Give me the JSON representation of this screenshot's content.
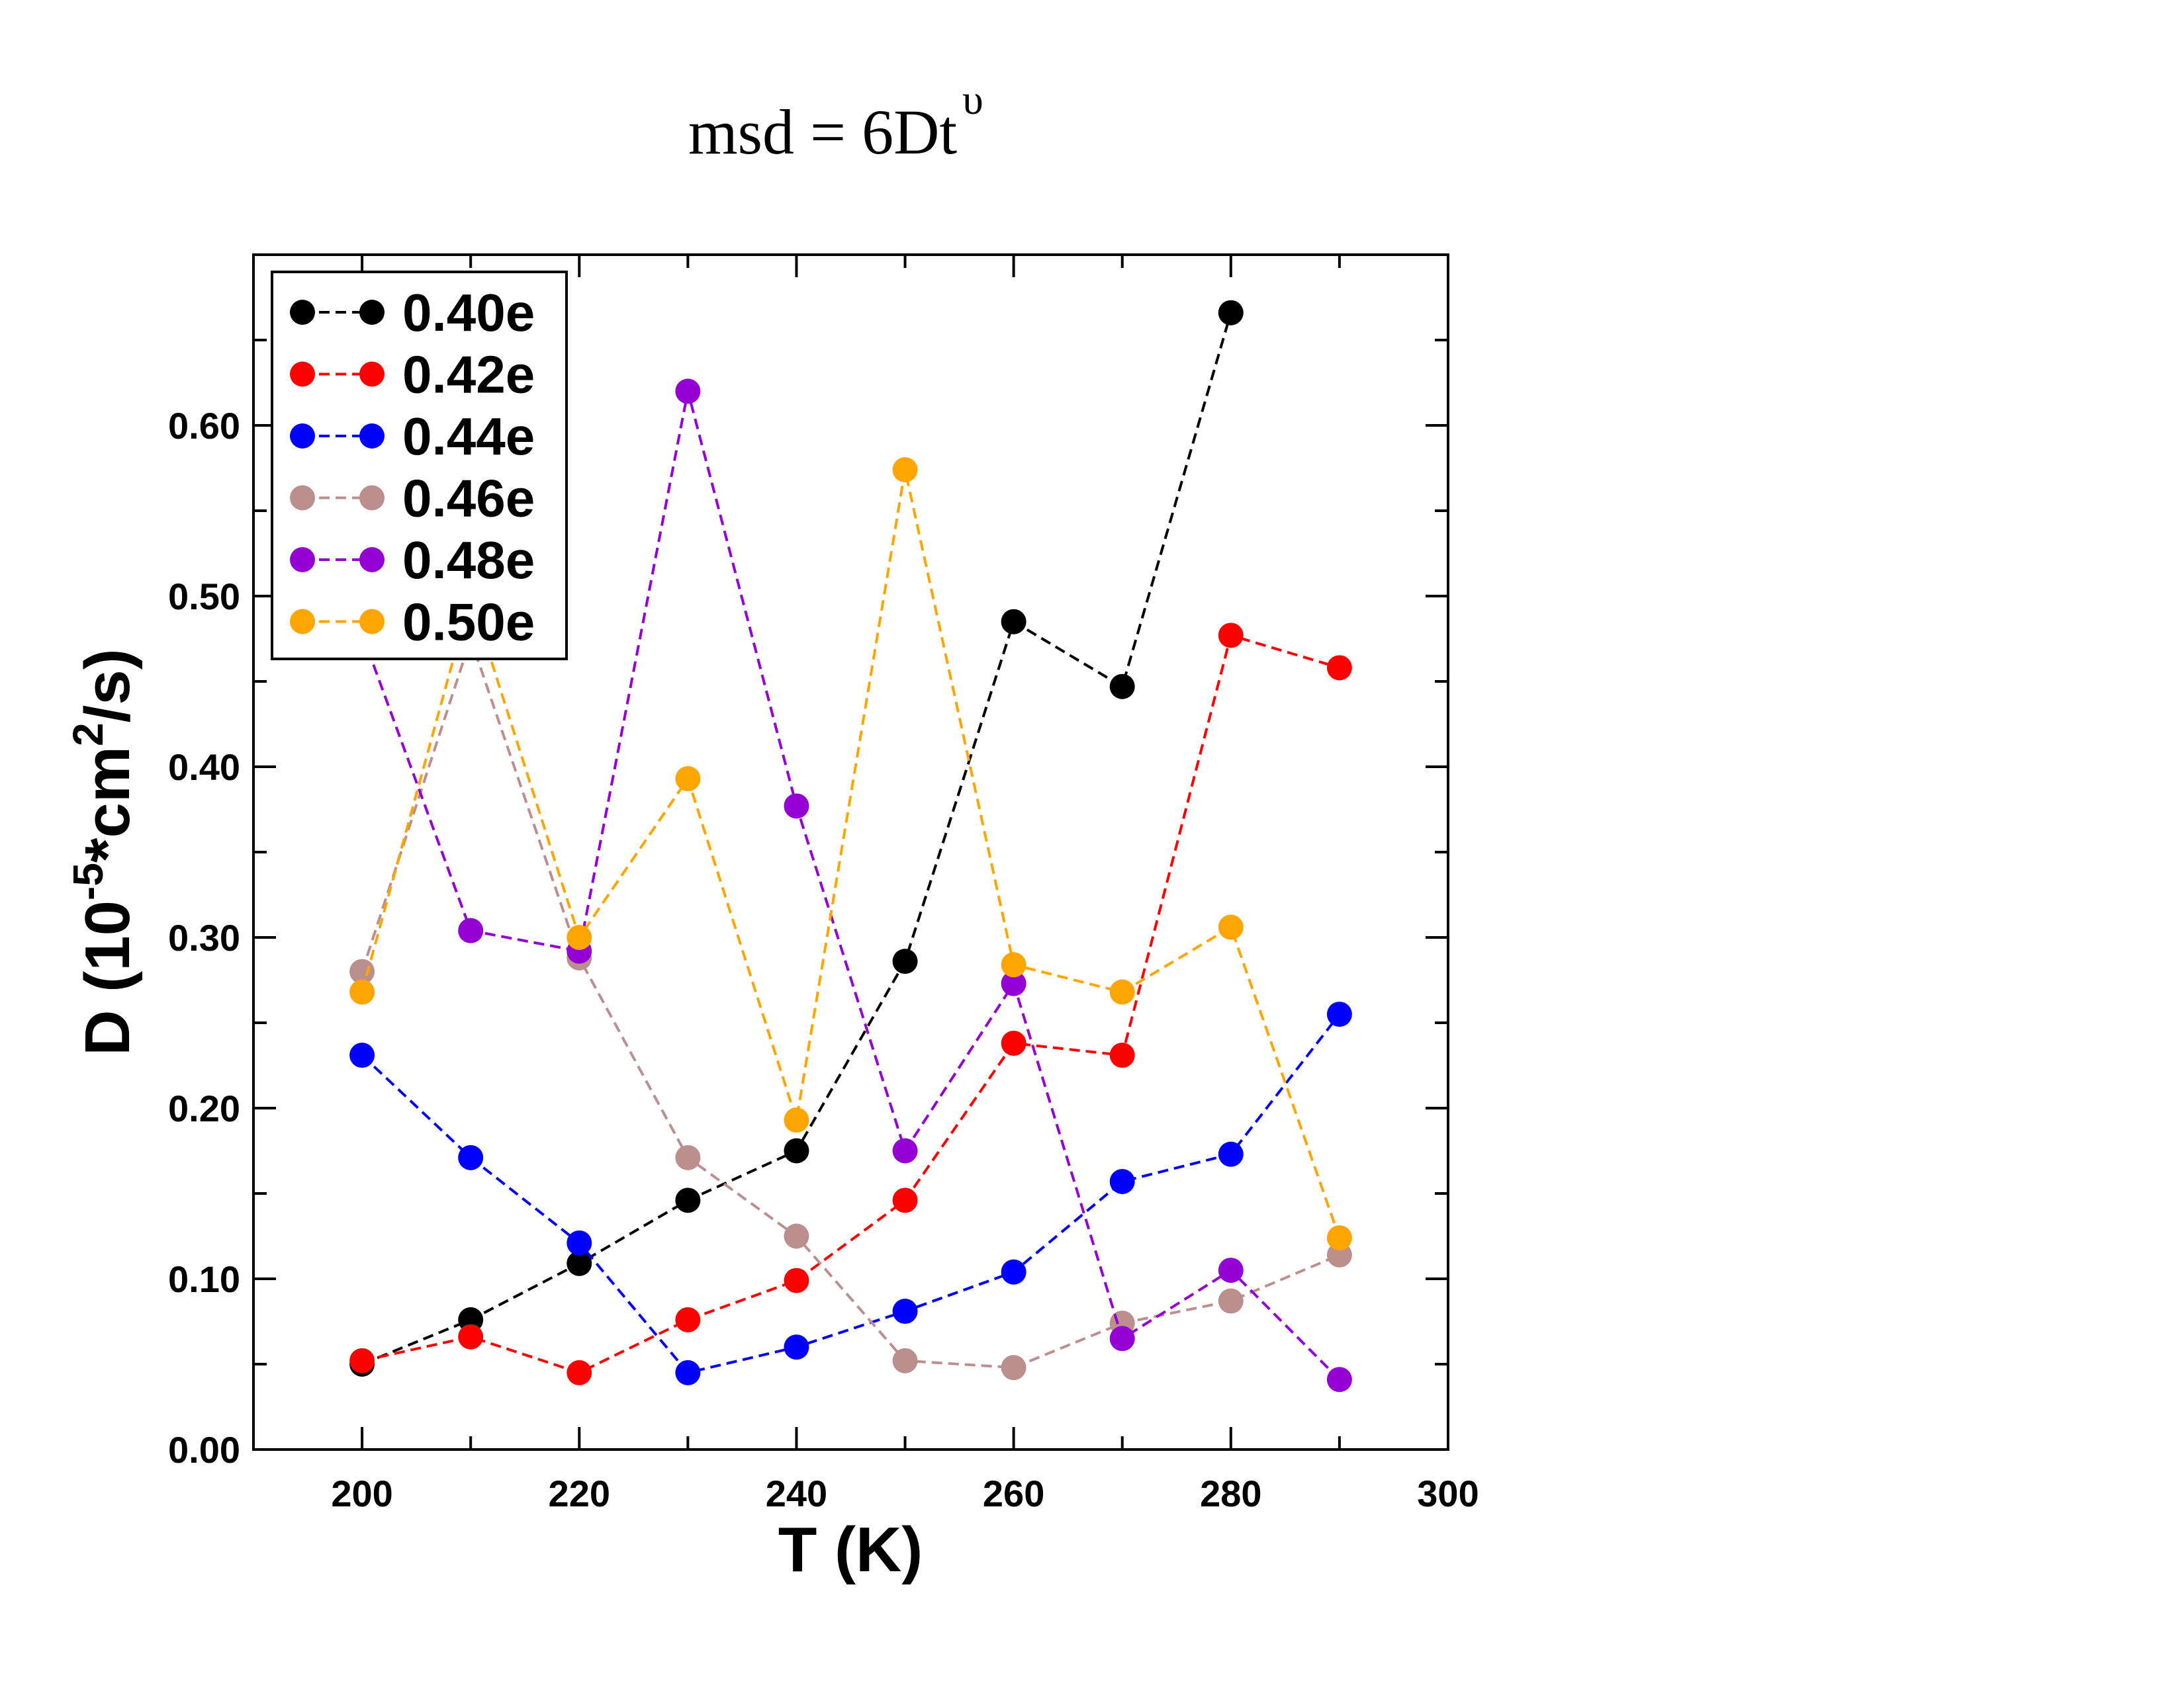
{
  "chart_data": {
    "type": "scatter",
    "title": "msd = 6Dt",
    "title_superscript": "υ",
    "xlabel": "T (K)",
    "ylabel_parts": [
      "D (10",
      "-5",
      "*cm",
      "2",
      "/s)"
    ],
    "xlim": [
      190,
      300
    ],
    "ylim": [
      0.0,
      0.7
    ],
    "x_ticks": [
      "200",
      "220",
      "240",
      "260",
      "280",
      "300"
    ],
    "y_ticks": [
      "0.00",
      "0.10",
      "0.20",
      "0.30",
      "0.40",
      "0.50",
      "0.60"
    ],
    "legend_position": "top-left",
    "line_style": "dashed",
    "x": [
      200,
      210,
      220,
      230,
      240,
      250,
      260,
      270,
      280,
      290
    ],
    "series": [
      {
        "name": "0.40e",
        "color": "#000000",
        "values": [
          0.05,
          0.076,
          0.109,
          0.146,
          0.175,
          0.286,
          0.485,
          0.447,
          0.666,
          null
        ]
      },
      {
        "name": "0.42e",
        "color": "#ff0000",
        "values": [
          0.052,
          0.066,
          0.045,
          0.076,
          0.099,
          0.146,
          0.238,
          0.231,
          0.477,
          0.458
        ]
      },
      {
        "name": "0.44e",
        "color": "#0000ff",
        "values": [
          0.231,
          0.171,
          0.121,
          0.045,
          0.06,
          0.081,
          0.104,
          0.157,
          0.173,
          0.255
        ]
      },
      {
        "name": "0.46e",
        "color": "#bc8f8f",
        "values": [
          0.28,
          0.475,
          0.288,
          0.171,
          0.125,
          0.052,
          0.048,
          0.074,
          0.087,
          0.114
        ]
      },
      {
        "name": "0.48e",
        "color": "#9400d3",
        "values": [
          0.478,
          0.304,
          0.292,
          0.62,
          0.377,
          0.175,
          0.273,
          0.065,
          0.105,
          0.041
        ]
      },
      {
        "name": "0.50e",
        "color": "#ffa500",
        "values": [
          0.268,
          0.5,
          0.3,
          0.393,
          0.193,
          0.574,
          0.284,
          0.268,
          0.306,
          0.124
        ]
      }
    ]
  }
}
